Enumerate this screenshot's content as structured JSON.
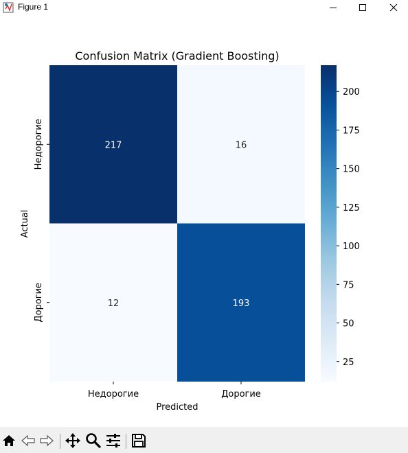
{
  "window": {
    "title": "Figure 1",
    "icons": {
      "app": "matplotlib-figure-icon",
      "minimize": "minimize-icon",
      "maximize": "maximize-icon",
      "close": "close-icon"
    }
  },
  "toolbar": {
    "buttons": [
      "home-icon",
      "back-arrow-icon",
      "forward-arrow-icon",
      "pan-icon",
      "zoom-icon",
      "configure-subplots-icon",
      "save-icon"
    ]
  },
  "chart_data": {
    "type": "heatmap",
    "title": "Confusion Matrix (Gradient Boosting)",
    "xlabel": "Predicted",
    "ylabel": "Actual",
    "x_categories": [
      "Недорогие",
      "Дорогие"
    ],
    "y_categories": [
      "Недорогие",
      "Дорогие"
    ],
    "values": [
      [
        217,
        16
      ],
      [
        12,
        193
      ]
    ],
    "colormap": "Blues",
    "colorbar": {
      "ticks": [
        25,
        50,
        75,
        100,
        125,
        150,
        175,
        200
      ],
      "range": [
        12,
        217
      ]
    }
  }
}
